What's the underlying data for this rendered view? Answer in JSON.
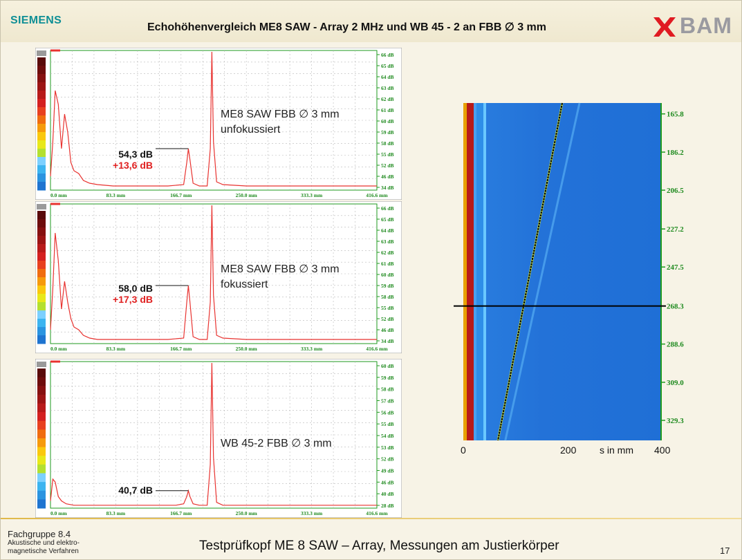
{
  "header": {
    "brand_left": "SIEMENS",
    "title": "Echohöhenvergleich ME8 SAW - Array 2 MHz und WB 45 - 2 an FBB ∅ 3 mm",
    "brand_right": "BAM"
  },
  "footer": {
    "group_line1": "Fachgruppe 8.4",
    "group_line2": "Akustische und elektro-",
    "group_line3": "magnetische Verfahren",
    "title": "Testprüfkopf ME 8 SAW – Array, Messungen am Justierkörper",
    "page": "17"
  },
  "colors": {
    "signal": "#e8322f",
    "axis_green": "#1e9a1e",
    "bscan_bg": "#2176d8"
  },
  "chart_data": [
    {
      "type": "line",
      "label_line1": "ME8 SAW FBB ∅ 3 mm",
      "label_line2": "unfokussiert",
      "annotation_value": "54,3 dB",
      "annotation_gain": "+13,6 dB",
      "x_ticks": [
        "0.0 mm",
        "83.3 mm",
        "166.7 mm",
        "250.0 mm",
        "333.3 mm",
        "416.6 mm"
      ],
      "xlim": [
        0,
        416.6
      ],
      "right_ticks": [
        "66 dB",
        "65 dB",
        "64 dB",
        "63 dB",
        "62 dB",
        "61 dB",
        "60 dB",
        "59 dB",
        "58 dB",
        "55 dB",
        "52 dB",
        "46 dB",
        "34 dB"
      ],
      "series": [
        {
          "x": [
            0,
            3,
            6,
            10,
            14,
            18,
            22,
            26,
            30,
            36,
            42,
            50,
            60,
            80,
            100,
            120,
            150,
            170,
            174,
            176,
            178,
            182,
            190,
            200,
            204,
            206,
            208,
            212,
            220,
            250,
            300,
            350,
            416.6
          ],
          "y": [
            0.1,
            0.35,
            0.72,
            0.62,
            0.3,
            0.55,
            0.42,
            0.2,
            0.14,
            0.12,
            0.07,
            0.05,
            0.04,
            0.03,
            0.03,
            0.03,
            0.03,
            0.04,
            0.2,
            0.3,
            0.22,
            0.05,
            0.03,
            0.03,
            0.3,
            1.0,
            0.35,
            0.06,
            0.04,
            0.03,
            0.03,
            0.03,
            0.03
          ]
        }
      ]
    },
    {
      "type": "line",
      "label_line1": "ME8 SAW FBB ∅ 3 mm",
      "label_line2": "fokussiert",
      "annotation_value": "58,0 dB",
      "annotation_gain": "+17,3 dB",
      "x_ticks": [
        "0.0 mm",
        "83.3 mm",
        "166.7 mm",
        "250.0 mm",
        "333.3 mm",
        "416.6 mm"
      ],
      "xlim": [
        0,
        416.6
      ],
      "right_ticks": [
        "66 dB",
        "65 dB",
        "64 dB",
        "63 dB",
        "62 dB",
        "61 dB",
        "60 dB",
        "59 dB",
        "58 dB",
        "55 dB",
        "52 dB",
        "46 dB",
        "34 dB"
      ],
      "series": [
        {
          "x": [
            0,
            3,
            6,
            10,
            14,
            18,
            22,
            26,
            30,
            36,
            42,
            50,
            60,
            80,
            100,
            120,
            150,
            170,
            174,
            176,
            178,
            182,
            190,
            200,
            204,
            206,
            208,
            212,
            220,
            250,
            300,
            350,
            416.6
          ],
          "y": [
            0.1,
            0.4,
            0.8,
            0.6,
            0.25,
            0.45,
            0.3,
            0.18,
            0.12,
            0.1,
            0.06,
            0.04,
            0.03,
            0.03,
            0.03,
            0.03,
            0.03,
            0.04,
            0.3,
            0.42,
            0.3,
            0.05,
            0.03,
            0.03,
            0.3,
            1.0,
            0.35,
            0.06,
            0.04,
            0.03,
            0.03,
            0.03,
            0.03
          ]
        }
      ]
    },
    {
      "type": "line",
      "label_line1": "WB 45-2 FBB ∅ 3 mm",
      "label_line2": "",
      "annotation_value": "40,7 dB",
      "annotation_gain": "",
      "x_ticks": [
        "0.0 mm",
        "83.3 mm",
        "166.7 mm",
        "250.0 mm",
        "333.3 mm",
        "416.6 mm"
      ],
      "xlim": [
        0,
        416.6
      ],
      "right_ticks": [
        "60 dB",
        "59 dB",
        "58 dB",
        "57 dB",
        "56 dB",
        "55 dB",
        "54 dB",
        "53 dB",
        "52 dB",
        "49 dB",
        "46 dB",
        "40 dB",
        "28 dB"
      ],
      "series": [
        {
          "x": [
            0,
            3,
            6,
            10,
            14,
            20,
            30,
            50,
            80,
            120,
            160,
            170,
            174,
            176,
            178,
            182,
            190,
            200,
            204,
            206,
            208,
            212,
            220,
            300,
            416.6
          ],
          "y": [
            0.05,
            0.2,
            0.18,
            0.08,
            0.05,
            0.03,
            0.02,
            0.02,
            0.02,
            0.02,
            0.02,
            0.03,
            0.08,
            0.12,
            0.08,
            0.03,
            0.02,
            0.02,
            0.3,
            1.0,
            0.35,
            0.04,
            0.02,
            0.02,
            0.02
          ]
        }
      ]
    },
    {
      "type": "heatmap",
      "xlabel": "s in mm",
      "x_ticks": [
        "0",
        "200",
        "400"
      ],
      "xlim": [
        0,
        400
      ],
      "y_ticks": [
        "165.8",
        "186.2",
        "206.5",
        "227.2",
        "247.5",
        "268.3",
        "288.6",
        "309.0",
        "329.3"
      ],
      "ylim": [
        160,
        340
      ],
      "cursor_y": 268.3,
      "traces": [
        {
          "role": "indication",
          "x": [
            200,
            70
          ],
          "y": [
            160,
            340
          ]
        },
        {
          "role": "echo",
          "x": [
            235,
            85
          ],
          "y": [
            160,
            340
          ]
        }
      ]
    }
  ]
}
